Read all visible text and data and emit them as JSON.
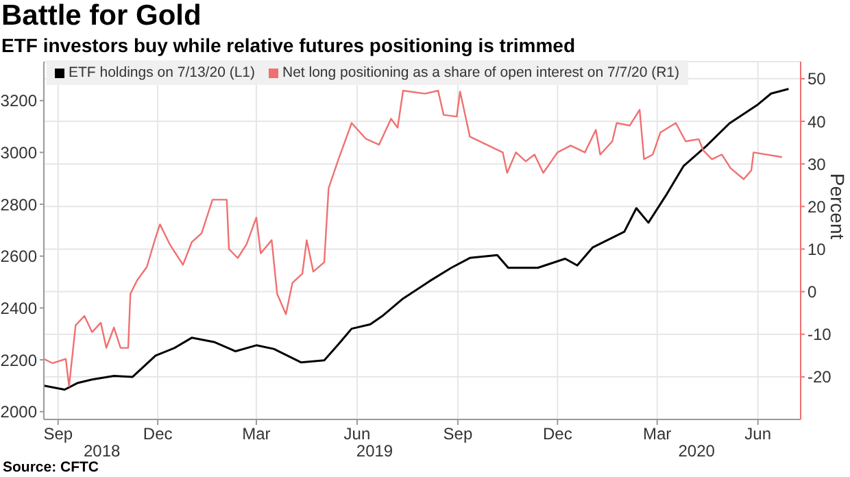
{
  "chart_data": {
    "type": "line",
    "title": "Battle for Gold",
    "subtitle": "ETF investors buy while relative futures positioning is trimmed",
    "y2label": "Percent",
    "annotations": [
      "Source: CFTC"
    ],
    "xlim": [
      "2018-09-02",
      "2020-07-24"
    ],
    "xticks": [
      {
        "value": "2018-09-15",
        "label": "Sep"
      },
      {
        "value": "2018-12-15",
        "label": "Dec"
      },
      {
        "value": "2019-03-15",
        "label": "Mar"
      },
      {
        "value": "2019-06-15",
        "label": "Jun"
      },
      {
        "value": "2019-09-15",
        "label": "Sep"
      },
      {
        "value": "2019-12-15",
        "label": "Dec"
      },
      {
        "value": "2020-03-15",
        "label": "Mar"
      },
      {
        "value": "2020-06-15",
        "label": "Jun"
      }
    ],
    "x2lim": [
      "2018-09-02",
      "2020-07-24"
    ],
    "x2ticks": [
      {
        "value": "2018-10-25",
        "label": "2018"
      },
      {
        "value": "2019-07-01",
        "label": "2019"
      },
      {
        "value": "2020-04-20",
        "label": "2020"
      }
    ],
    "ylim": [
      1970,
      3350
    ],
    "yticks": [
      2000,
      2200,
      2400,
      2600,
      2800,
      3000,
      3200
    ],
    "y2lim": [
      -30,
      54
    ],
    "y2ticks": [
      -20,
      -10,
      0,
      10,
      20,
      30,
      40,
      50
    ],
    "grid": true,
    "legend": "top left",
    "marker": "none",
    "line_style": "solid",
    "series": [
      {
        "name": "ETF holdings on 7/13/20 (L1)",
        "color": "#000000",
        "x": [
          "2018-09-02",
          "2018-09-21",
          "2018-10-03",
          "2018-10-16",
          "2018-11-05",
          "2018-11-22",
          "2018-12-13",
          "2018-12-30",
          "2019-01-15",
          "2019-02-05",
          "2019-02-24",
          "2019-03-15",
          "2019-03-31",
          "2019-04-25",
          "2019-05-16",
          "2019-05-29",
          "2019-06-10",
          "2019-06-27",
          "2019-07-09",
          "2019-07-26",
          "2019-08-20",
          "2019-09-09",
          "2019-09-26",
          "2019-10-21",
          "2019-10-31",
          "2019-11-27",
          "2019-12-22",
          "2020-01-02",
          "2020-01-16",
          "2020-02-14",
          "2020-02-25",
          "2020-03-07",
          "2020-03-23",
          "2020-04-08",
          "2020-04-29",
          "2020-05-20",
          "2020-06-15",
          "2020-06-27",
          "2020-07-13"
        ],
        "values": [
          2100,
          2085,
          2111,
          2124,
          2138,
          2134,
          2216,
          2245,
          2285,
          2268,
          2233,
          2256,
          2242,
          2190,
          2198,
          2260,
          2320,
          2337,
          2372,
          2433,
          2503,
          2555,
          2593,
          2604,
          2555,
          2555,
          2590,
          2564,
          2633,
          2694,
          2785,
          2729,
          2834,
          2947,
          3025,
          3112,
          3185,
          3227,
          3245
        ]
      },
      {
        "name": "Net long positioning as a share of open interest on 7/7/20 (R1)",
        "color": "#f07070",
        "axis": "y2",
        "x": [
          "2018-09-02",
          "2018-09-10",
          "2018-09-22",
          "2018-09-25",
          "2018-10-01",
          "2018-10-09",
          "2018-10-16",
          "2018-10-24",
          "2018-10-29",
          "2018-11-05",
          "2018-11-11",
          "2018-11-18",
          "2018-11-20",
          "2018-11-26",
          "2018-12-05",
          "2018-12-13",
          "2018-12-17",
          "2018-12-26",
          "2019-01-07",
          "2019-01-15",
          "2019-01-24",
          "2019-02-03",
          "2019-02-16",
          "2019-02-18",
          "2019-02-26",
          "2019-03-06",
          "2019-03-15",
          "2019-03-19",
          "2019-03-29",
          "2019-04-03",
          "2019-04-11",
          "2019-04-17",
          "2019-04-26",
          "2019-04-30",
          "2019-05-06",
          "2019-05-16",
          "2019-05-20",
          "2019-05-29",
          "2019-06-04",
          "2019-06-10",
          "2019-06-23",
          "2019-07-05",
          "2019-07-16",
          "2019-07-22",
          "2019-07-27",
          "2019-08-16",
          "2019-08-28",
          "2019-09-02",
          "2019-09-14",
          "2019-09-17",
          "2019-09-26",
          "2019-10-09",
          "2019-10-26",
          "2019-10-30",
          "2019-11-07",
          "2019-11-16",
          "2019-11-24",
          "2019-12-02",
          "2019-12-15",
          "2019-12-27",
          "2020-01-09",
          "2020-01-19",
          "2020-01-23",
          "2020-02-03",
          "2020-02-07",
          "2020-02-19",
          "2020-02-28",
          "2020-03-03",
          "2020-03-11",
          "2020-03-18",
          "2020-04-01",
          "2020-04-10",
          "2020-04-22",
          "2020-04-26",
          "2020-05-04",
          "2020-05-13",
          "2020-05-21",
          "2020-06-02",
          "2020-06-09",
          "2020-06-11",
          "2020-07-07"
        ],
        "values": [
          -15.8,
          -16.8,
          -15.8,
          -22.2,
          -7.9,
          -5.7,
          -9.5,
          -7.3,
          -13.2,
          -8.4,
          -13.2,
          -13.2,
          -0.5,
          2.6,
          5.8,
          12.7,
          15.8,
          11.1,
          6.3,
          11.6,
          13.7,
          21.6,
          21.6,
          10.0,
          7.9,
          11.1,
          17.4,
          9.0,
          12.1,
          -0.5,
          -5.3,
          2.1,
          4.2,
          12.1,
          4.7,
          6.9,
          24.3,
          31.1,
          35.3,
          39.6,
          35.9,
          34.5,
          40.6,
          38.5,
          47.2,
          46.5,
          47.2,
          41.5,
          41.1,
          47.0,
          36.4,
          34.8,
          32.7,
          27.9,
          32.7,
          30.6,
          32.2,
          27.9,
          32.7,
          34.3,
          32.7,
          38.0,
          32.2,
          35.3,
          39.6,
          39.0,
          42.7,
          31.1,
          32.2,
          37.4,
          39.6,
          35.3,
          35.8,
          33.2,
          31.1,
          32.2,
          29.0,
          26.4,
          28.5,
          32.7,
          31.6
        ]
      }
    ]
  }
}
